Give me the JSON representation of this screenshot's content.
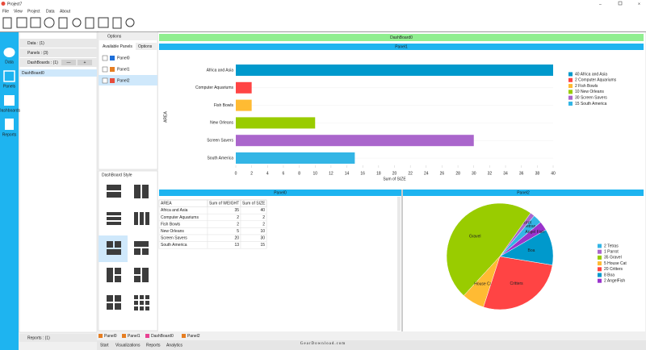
{
  "window": {
    "title": "Project7"
  },
  "menu": [
    "File",
    "View",
    "Project",
    "Data",
    "About"
  ],
  "sidebar": [
    "Data",
    "Panels",
    "Dashboards",
    "Reports"
  ],
  "tree": {
    "data": "Data : (1)",
    "panels": "Panels : (3)",
    "dashboards": "DashBoards : (1)",
    "item": "DashBoard0",
    "reports": "Reports : (1)"
  },
  "options": {
    "title": "Options",
    "tabs": [
      "Available Panels",
      "Options"
    ],
    "panels": [
      "Panel0",
      "Panel1",
      "Panel2"
    ]
  },
  "style_title": "DashBoard Style",
  "dashboard": {
    "title": "DashBoard0"
  },
  "panel1": {
    "title": "Panel1",
    "chart": {
      "type": "bar",
      "orientation": "horizontal",
      "y_label": "AREA",
      "x_label": "Sum of SIZE",
      "categories": [
        "Africa and Asia",
        "Computer Aquariums",
        "Fish Bowls",
        "New Orleans",
        "Screen Savers",
        "South America"
      ],
      "values": [
        40,
        2,
        2,
        10,
        30,
        15
      ],
      "colors": [
        "#0099cc",
        "#ff4444",
        "#ffbb33",
        "#99cc00",
        "#aa66cc",
        "#33b5e5"
      ],
      "xlim": [
        0,
        40
      ],
      "xticks": [
        0,
        2,
        4,
        6,
        8,
        10,
        12,
        14,
        16,
        18,
        20,
        22,
        24,
        26,
        28,
        30,
        32,
        34,
        36,
        38,
        40
      ],
      "legend": [
        "40 Africa and Asia",
        "2 Computer Aquariums",
        "2 Fish Bowls",
        "10 New Orleans",
        "30 Screen Savers",
        "15 South America"
      ]
    }
  },
  "panel0": {
    "title": "Panel0",
    "table": {
      "columns": [
        "AREA",
        "Sum of WEIGHT",
        "Sum of SIZE"
      ],
      "rows": [
        [
          "Africa and Asia",
          "35",
          "40"
        ],
        [
          "Computer Aquariums",
          "2",
          "2"
        ],
        [
          "Fish Bowls",
          "2",
          "2"
        ],
        [
          "New Orleans",
          "5",
          "10"
        ],
        [
          "Screen Savers",
          "20",
          "30"
        ],
        [
          "South America",
          "13",
          "15"
        ]
      ]
    }
  },
  "panel2": {
    "title": "Panel2",
    "chart": {
      "type": "pie",
      "categories": [
        "Tetras",
        "Parrot",
        "Gravel",
        "House Cat",
        "Critters",
        "Boa",
        "Angel Fish"
      ],
      "values": [
        2,
        1,
        35,
        5,
        20,
        8,
        2
      ],
      "colors": [
        "#33b5e5",
        "#aa66cc",
        "#99cc00",
        "#ffbb33",
        "#ff4444",
        "#0099cc",
        "#9933cc"
      ],
      "legend": [
        "2 Tetras",
        "1 Parrot",
        "35 Gravel",
        "5 House Cat",
        "20 Critters",
        "8 Boa",
        "2 AngelFish"
      ]
    }
  },
  "bottom_tabs": [
    "Panel0",
    "Panel1",
    "DashBoard0",
    "Panel2"
  ],
  "nav": [
    "Start",
    "Visualizations",
    "Reports",
    "Analytics"
  ],
  "watermark": "GearDownload.com"
}
